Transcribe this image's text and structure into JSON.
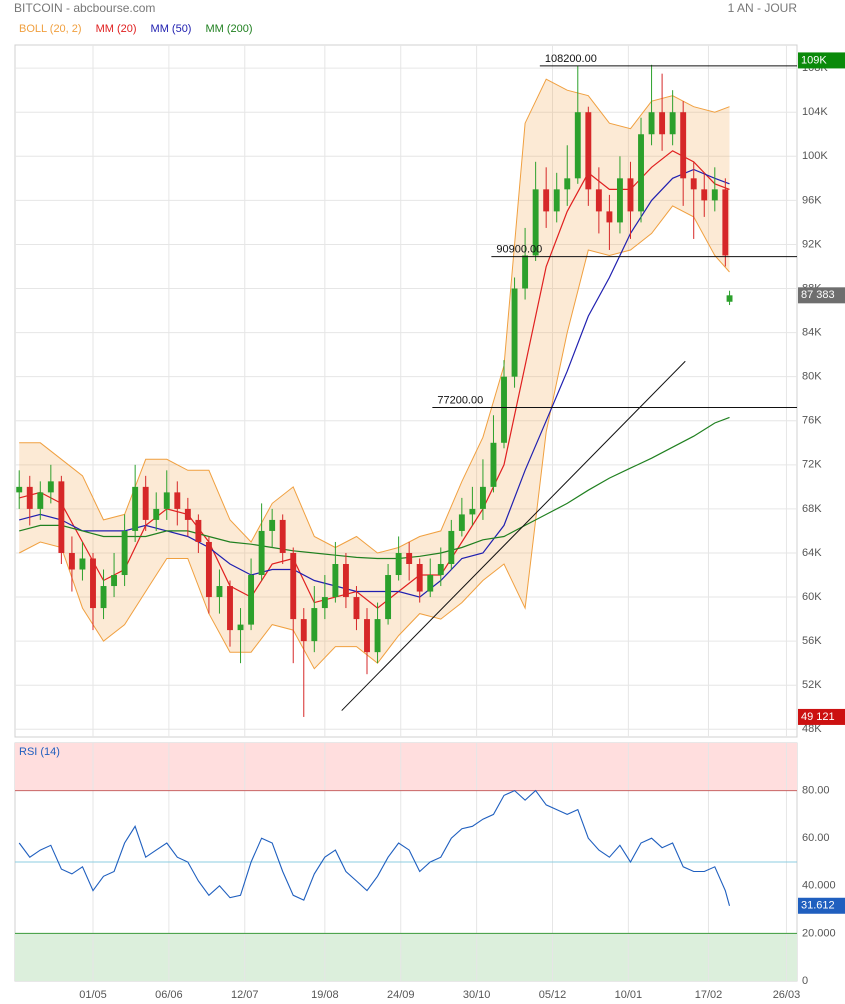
{
  "chart_data": [
    {
      "type": "candlestick",
      "title": "BITCOIN - abcbourse.com",
      "subtitle": "1 AN - JOUR",
      "x": [
        -35,
        -30,
        -25,
        -20,
        -15,
        -10,
        -5,
        0,
        5,
        10,
        15,
        20,
        25,
        30,
        35,
        40,
        45,
        50,
        55,
        60,
        65,
        70,
        75,
        80,
        85,
        90,
        95,
        100,
        105,
        110,
        115,
        120,
        125,
        130,
        135,
        140,
        145,
        150,
        155,
        160,
        165,
        170,
        175,
        180,
        185,
        190,
        195,
        200,
        205,
        210,
        215,
        220,
        225,
        230,
        235,
        240,
        245,
        250,
        255,
        260,
        265,
        270,
        275,
        280,
        285,
        290,
        295,
        300,
        302
      ],
      "open": [
        69500,
        70000,
        68000,
        69500,
        70500,
        64000,
        62500,
        63500,
        59000,
        61000,
        62000,
        66000,
        70000,
        67000,
        68000,
        69500,
        68000,
        67000,
        65000,
        60000,
        61000,
        57000,
        57500,
        62000,
        66000,
        67000,
        64000,
        58000,
        56000,
        59000,
        60000,
        63000,
        60000,
        58000,
        55000,
        58000,
        62000,
        64000,
        63000,
        60500,
        62000,
        63000,
        66000,
        67500,
        68000,
        70000,
        74000,
        80000,
        88000,
        91000,
        97000,
        95000,
        97000,
        98000,
        104000,
        97000,
        95000,
        94000,
        98000,
        95000,
        102000,
        104000,
        102000,
        104000,
        98000,
        97000,
        96000,
        97000,
        86800
      ],
      "high": [
        71500,
        71000,
        70500,
        72000,
        71000,
        65500,
        65000,
        64000,
        62500,
        64000,
        67500,
        72000,
        71000,
        69500,
        71500,
        70500,
        69000,
        67500,
        65500,
        62500,
        61500,
        59000,
        63500,
        68500,
        68000,
        67500,
        64500,
        59000,
        61000,
        62000,
        65000,
        64000,
        61000,
        59000,
        59500,
        63000,
        65500,
        65000,
        63500,
        63500,
        64500,
        67000,
        69000,
        70000,
        72500,
        76500,
        81500,
        89000,
        93500,
        99500,
        99000,
        98500,
        101000,
        108200,
        104500,
        99000,
        96500,
        100000,
        99500,
        103500,
        108300,
        107500,
        106000,
        105000,
        99500,
        98500,
        99000,
        98000,
        87800
      ],
      "low": [
        68000,
        66500,
        67000,
        68500,
        63000,
        60500,
        61500,
        57000,
        58000,
        60000,
        61000,
        65000,
        66000,
        66000,
        67000,
        66500,
        65500,
        64000,
        58500,
        58500,
        55500,
        54000,
        57000,
        61500,
        64500,
        63000,
        54000,
        49121,
        55000,
        58000,
        59500,
        59000,
        57000,
        53000,
        54000,
        57500,
        61500,
        61500,
        59500,
        60000,
        61000,
        62500,
        65500,
        66500,
        67000,
        69500,
        73500,
        79000,
        87000,
        90500,
        93500,
        94000,
        95500,
        97500,
        95500,
        93000,
        91500,
        93000,
        92500,
        94000,
        101000,
        100500,
        101000,
        95500,
        92500,
        94500,
        95000,
        90000,
        86500
      ],
      "close": [
        70000,
        68000,
        69500,
        70500,
        64000,
        62500,
        63500,
        59000,
        61000,
        62000,
        66000,
        70000,
        67000,
        68000,
        69500,
        68000,
        67000,
        65000,
        60000,
        61000,
        57000,
        57500,
        62000,
        66000,
        67000,
        64000,
        58000,
        56000,
        59000,
        60000,
        63000,
        60000,
        58000,
        55000,
        58000,
        62000,
        64000,
        63000,
        60500,
        62000,
        63000,
        66000,
        67500,
        68000,
        70000,
        74000,
        80000,
        88000,
        91000,
        97000,
        95000,
        97000,
        98000,
        104000,
        97000,
        95000,
        94000,
        98000,
        95000,
        102000,
        104000,
        102000,
        104000,
        98000,
        97000,
        96000,
        97000,
        91000,
        87383
      ],
      "up_color": "#2ca02c",
      "down_color": "#d62728",
      "overlay_x": [
        -35,
        -25,
        -15,
        -5,
        5,
        15,
        25,
        35,
        45,
        55,
        65,
        75,
        85,
        95,
        105,
        115,
        125,
        135,
        145,
        155,
        165,
        175,
        185,
        195,
        205,
        215,
        225,
        235,
        245,
        255,
        265,
        275,
        285,
        295,
        302
      ],
      "overlays": [
        {
          "name": "BOLL (20, 2)",
          "color": "#f0a040",
          "upper": [
            74000,
            74000,
            72500,
            71000,
            67000,
            67500,
            72500,
            72500,
            71500,
            71500,
            67000,
            65000,
            68500,
            70000,
            65500,
            64500,
            65500,
            64000,
            64500,
            65500,
            66000,
            70500,
            74500,
            81000,
            103000,
            107000,
            106000,
            105500,
            103000,
            102500,
            105000,
            105500,
            104500,
            104000,
            104500
          ],
          "lower": [
            64000,
            65000,
            64500,
            59000,
            56000,
            57500,
            60500,
            63500,
            63500,
            58500,
            55000,
            55000,
            57500,
            57000,
            53500,
            55500,
            55500,
            54000,
            56500,
            58500,
            58000,
            59500,
            61500,
            63000,
            59000,
            75000,
            84000,
            91500,
            91000,
            91500,
            93000,
            95500,
            94500,
            91000,
            89500
          ]
        },
        {
          "name": "MM (20)",
          "color": "#e02020",
          "values": [
            69000,
            69500,
            68500,
            65000,
            61500,
            62500,
            66500,
            68000,
            67500,
            65000,
            61000,
            60000,
            63000,
            63500,
            59500,
            60000,
            60500,
            59000,
            60500,
            62000,
            62000,
            65000,
            68000,
            72000,
            81000,
            90000,
            95000,
            98500,
            97000,
            97000,
            99000,
            100500,
            99500,
            97500,
            97000
          ]
        },
        {
          "name": "MM (50)",
          "color": "#2020b0",
          "values": [
            67000,
            67500,
            67000,
            66000,
            66000,
            66000,
            66500,
            66000,
            65500,
            64500,
            63000,
            62000,
            62500,
            62500,
            61500,
            61000,
            60500,
            60500,
            60500,
            60000,
            61500,
            63500,
            64000,
            66500,
            71500,
            76000,
            80500,
            85500,
            89000,
            93000,
            96000,
            98000,
            98800,
            98000,
            97500
          ]
        },
        {
          "name": "MM (200)",
          "color": "#208020",
          "values": [
            66000,
            66500,
            66500,
            66000,
            65500,
            65500,
            65500,
            66000,
            66000,
            65500,
            65000,
            64800,
            64500,
            64200,
            64000,
            63800,
            63600,
            63500,
            63500,
            63700,
            64000,
            64500,
            65200,
            65500,
            66500,
            67500,
            68500,
            69700,
            70800,
            71700,
            72600,
            73600,
            74600,
            75800,
            76300
          ]
        }
      ],
      "xlim": [
        -37,
        334
      ],
      "xticks": [
        {
          "value": 0,
          "label": "01/05"
        },
        {
          "value": 36,
          "label": "06/06"
        },
        {
          "value": 72,
          "label": "12/07"
        },
        {
          "value": 110,
          "label": "19/08"
        },
        {
          "value": 146,
          "label": "24/09"
        },
        {
          "value": 182,
          "label": "30/10"
        },
        {
          "value": 218,
          "label": "05/12"
        },
        {
          "value": 254,
          "label": "10/01"
        },
        {
          "value": 292,
          "label": "17/02"
        },
        {
          "value": 329,
          "label": "26/03"
        }
      ],
      "ylim": [
        47300,
        110100
      ],
      "yticks": [
        {
          "value": 48000,
          "label": "48K"
        },
        {
          "value": 52000,
          "label": "52K"
        },
        {
          "value": 56000,
          "label": "56K"
        },
        {
          "value": 60000,
          "label": "60K"
        },
        {
          "value": 64000,
          "label": "64K"
        },
        {
          "value": 68000,
          "label": "68K"
        },
        {
          "value": 72000,
          "label": "72K"
        },
        {
          "value": 76000,
          "label": "76K"
        },
        {
          "value": 80000,
          "label": "80K"
        },
        {
          "value": 84000,
          "label": "84K"
        },
        {
          "value": 88000,
          "label": "88K"
        },
        {
          "value": 92000,
          "label": "92K"
        },
        {
          "value": 96000,
          "label": "96K"
        },
        {
          "value": 100000,
          "label": "100K"
        },
        {
          "value": 104000,
          "label": "104K"
        },
        {
          "value": 108000,
          "label": "108K"
        }
      ],
      "grid": true,
      "levels": [
        {
          "value": 108200,
          "label": "108200.00",
          "x": 212
        },
        {
          "value": 90900,
          "label": "90900.00",
          "x": 189
        },
        {
          "value": 77200,
          "label": "77200.00",
          "x": 161
        }
      ],
      "trendline": {
        "x": [
          118,
          281
        ],
        "y": [
          49700,
          81400
        ]
      },
      "price_tags": [
        {
          "value": 108700,
          "label": "109K",
          "color": "#0a8a0a"
        },
        {
          "value": 87383,
          "label": "87 383",
          "color": "#6e6e6e"
        },
        {
          "value": 49121,
          "label": "49 121",
          "color": "#cc1111"
        }
      ]
    },
    {
      "type": "line",
      "x": [
        -35,
        -30,
        -25,
        -20,
        -15,
        -10,
        -5,
        0,
        5,
        10,
        15,
        20,
        25,
        30,
        35,
        40,
        45,
        50,
        55,
        60,
        65,
        70,
        75,
        80,
        85,
        90,
        95,
        100,
        105,
        110,
        115,
        120,
        125,
        130,
        135,
        140,
        145,
        150,
        155,
        160,
        165,
        170,
        175,
        180,
        185,
        190,
        195,
        200,
        205,
        210,
        215,
        220,
        225,
        230,
        235,
        240,
        245,
        250,
        255,
        260,
        265,
        270,
        275,
        280,
        285,
        290,
        295,
        300,
        302
      ],
      "series": [
        {
          "name": "RSI (14)",
          "color": "#1f5fbf",
          "values": [
            58,
            52,
            55,
            57,
            47,
            45,
            48,
            38,
            44,
            46,
            58,
            65,
            52,
            55,
            58,
            52,
            50,
            42,
            36,
            40,
            35,
            36,
            50,
            60,
            58,
            46,
            36,
            34,
            45,
            52,
            55,
            46,
            42,
            38,
            44,
            52,
            58,
            55,
            46,
            50,
            52,
            60,
            64,
            65,
            68,
            70,
            78,
            80,
            76,
            80,
            74,
            72,
            70,
            72,
            60,
            55,
            52,
            57,
            50,
            58,
            60,
            56,
            58,
            48,
            46,
            46,
            48,
            38,
            31.612
          ]
        }
      ],
      "ylim": [
        0,
        100
      ],
      "yticks": [
        {
          "value": 0,
          "label": "0"
        },
        {
          "value": 20,
          "label": "20.000"
        },
        {
          "value": 40,
          "label": "40.000"
        },
        {
          "value": 60,
          "label": "60.00"
        },
        {
          "value": 80,
          "label": "80.00"
        }
      ],
      "reference_lines": [
        {
          "value": 80,
          "color": "#c86464"
        },
        {
          "value": 50,
          "color": "#8ccde0"
        },
        {
          "value": 20,
          "color": "#3a9a3a"
        }
      ],
      "zones": [
        {
          "from": 80,
          "to": 100,
          "color": "#ffdede"
        },
        {
          "from": 0,
          "to": 20,
          "color": "#dcefdc"
        }
      ]
    }
  ]
}
